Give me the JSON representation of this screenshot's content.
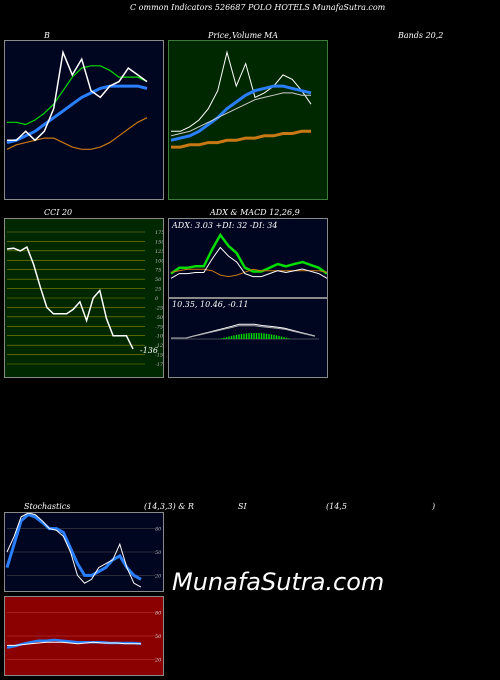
{
  "header": {
    "title": "C ommon Indicators 526687 POLO HOTELS MunafaSutra.com"
  },
  "labels": {
    "b": "B",
    "price": "Price,",
    "volume": "Volume",
    "ma": "MA",
    "bands": "Bands 20,2",
    "cci": "CCI 20",
    "adx": "ADX & MACD 12,26,9",
    "adx_values": "ADX: 3.03 +DI: 32 -DI: 34",
    "macd_values": "10.35, 10.46, -0.11",
    "stoch": "Stochastics",
    "stoch_params": "(14,3,3) & R",
    "rsi": "SI",
    "rsi_params": "(14,5",
    "rsi_close": ")",
    "cci_value": "-136",
    "watermark": "MunafaSutra.com"
  },
  "colors": {
    "bands_bg": "#000520",
    "price_bg": "#002800",
    "cci_bg": "#002800",
    "adx_bg": "#000520",
    "stoch_bg": "#000520",
    "rsi_bg": "#8b0000",
    "green": "#00dd00",
    "blue": "#2a7fff",
    "orange": "#c87814",
    "white": "#ffffff"
  },
  "chart_data": [
    {
      "type": "line",
      "title": "B",
      "subtitle": "Bands 20,2",
      "series": [
        {
          "values": [
            64,
            64,
            63,
            65,
            68,
            72,
            78,
            84,
            88,
            89,
            89,
            87,
            84,
            84,
            84,
            82
          ]
        },
        {
          "values": [
            55,
            56,
            58,
            60,
            63,
            66,
            69,
            72,
            75,
            77,
            79,
            80,
            80,
            80,
            80,
            79
          ]
        },
        {
          "values": [
            52,
            54,
            55,
            56,
            57,
            57,
            55,
            53,
            52,
            52,
            53,
            55,
            58,
            61,
            64,
            66
          ]
        },
        {
          "values": [
            56,
            56,
            60,
            56,
            60,
            70,
            95,
            85,
            92,
            78,
            75,
            80,
            82,
            88,
            85,
            82
          ]
        }
      ]
    },
    {
      "type": "line",
      "title": "Price, Volume MA",
      "series": [
        {
          "values": [
            60,
            60,
            62,
            65,
            70,
            78,
            95,
            80,
            90,
            75,
            77,
            80,
            85,
            83,
            78,
            72
          ]
        },
        {
          "values": [
            56,
            57,
            58,
            60,
            63,
            66,
            70,
            73,
            76,
            78,
            79,
            80,
            80,
            79,
            78,
            77
          ]
        },
        {
          "values": [
            53,
            53,
            54,
            54,
            55,
            55,
            56,
            56,
            57,
            57,
            58,
            58,
            59,
            59,
            60,
            60
          ]
        },
        {
          "values": [
            58,
            59,
            60,
            62,
            64,
            66,
            68,
            70,
            72,
            74,
            75,
            76,
            77,
            77,
            76,
            76
          ]
        }
      ]
    },
    {
      "type": "line",
      "title": "CCI 20",
      "yticks": [
        175,
        150,
        125,
        100,
        75,
        50,
        25,
        0,
        -25,
        -50,
        -75,
        -100,
        -125,
        -150,
        -175
      ],
      "ylim": [
        -175,
        175
      ],
      "values": [
        130,
        132,
        125,
        135,
        90,
        30,
        -25,
        -42,
        -42,
        -42,
        -30,
        -10,
        -60,
        0,
        20,
        -55,
        -100,
        -100,
        -100,
        -135
      ],
      "last_label": "-136"
    },
    {
      "type": "line",
      "title": "ADX & MACD 12,26,9",
      "series": [
        {
          "name": "ADX",
          "values": [
            3,
            3,
            3,
            3.5,
            4,
            6,
            10,
            12,
            10,
            7,
            5,
            4,
            4,
            3.5,
            3,
            3,
            3,
            3.5,
            3.5,
            3
          ]
        },
        {
          "name": "+DI",
          "values": [
            32,
            40,
            40,
            42,
            42,
            65,
            85,
            70,
            60,
            40,
            35,
            35,
            40,
            45,
            42,
            45,
            48,
            44,
            40,
            32
          ]
        },
        {
          "name": "-DI",
          "values": [
            34,
            36,
            38,
            38,
            38,
            36,
            30,
            28,
            30,
            34,
            38,
            36,
            36,
            36,
            36,
            36,
            36,
            36,
            36,
            34
          ]
        }
      ],
      "macd": {
        "macd": 10.35,
        "signal": 10.46,
        "hist": -0.11
      }
    },
    {
      "type": "line",
      "title": "Stochastics (14,3,3)",
      "yticks": [
        80,
        50,
        20
      ],
      "ylim": [
        0,
        100
      ],
      "series": [
        {
          "values": [
            30,
            60,
            90,
            98,
            95,
            88,
            80,
            80,
            75,
            55,
            35,
            20,
            20,
            25,
            30,
            40,
            45,
            30,
            20,
            15
          ]
        },
        {
          "values": [
            50,
            70,
            95,
            100,
            98,
            90,
            80,
            78,
            70,
            50,
            20,
            10,
            15,
            30,
            35,
            40,
            60,
            30,
            10,
            5
          ]
        }
      ]
    },
    {
      "type": "line",
      "title": "RSI (14,5)",
      "yticks": [
        80,
        50,
        20
      ],
      "ylim": [
        0,
        100
      ],
      "series": [
        {
          "values": [
            35,
            37,
            40,
            42,
            44,
            44,
            45,
            44,
            43,
            42,
            42,
            42,
            42,
            41,
            41,
            41,
            41,
            40
          ]
        },
        {
          "values": [
            38,
            38,
            39,
            40,
            41,
            42,
            42,
            42,
            41,
            40,
            41,
            42,
            41,
            41,
            41,
            40,
            40,
            40
          ]
        }
      ]
    }
  ]
}
